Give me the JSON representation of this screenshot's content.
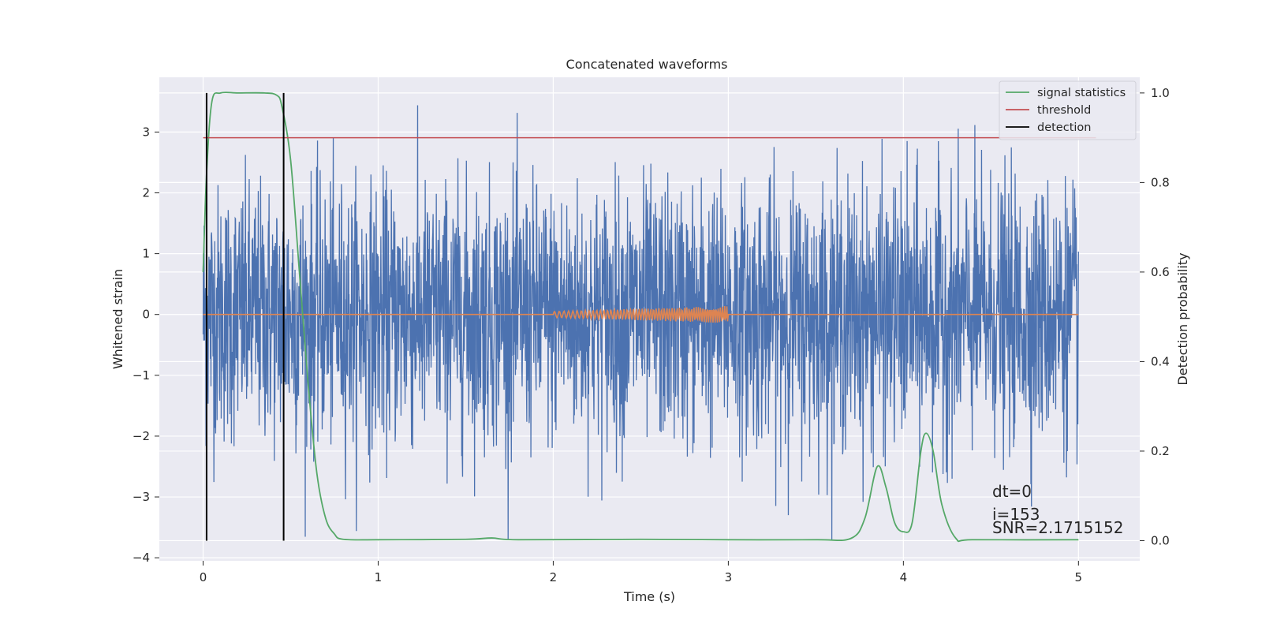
{
  "chart_data": {
    "type": "line",
    "title": "Concatenated waveforms",
    "xlabel": "Time (s)",
    "ylabel_left": "Whitened strain",
    "ylabel_right": "Detection probability",
    "xlim": [
      -0.25,
      5.35
    ],
    "ylim_left": [
      -4.05,
      3.9
    ],
    "ylim_right": [
      -0.045,
      1.035
    ],
    "x_ticks": [
      0,
      1,
      2,
      3,
      4,
      5
    ],
    "y_left_ticks": [
      3,
      2,
      1,
      0,
      -1,
      -2,
      -3,
      -4
    ],
    "y_left_tick_labels": [
      "3",
      "2",
      "1",
      "0",
      "−1",
      "−2",
      "−3",
      "−4"
    ],
    "y_right_ticks": [
      1.0,
      0.8,
      0.6,
      0.4,
      0.2,
      0.0
    ],
    "y_right_tick_labels": [
      "1.0",
      "0.8",
      "0.6",
      "0.4",
      "0.2",
      "0.0"
    ],
    "grid": true,
    "legend_position": "top-right",
    "background_color": "#eaeaf2",
    "series": [
      {
        "name": "",
        "role": "whitened noise + signal",
        "axis": "left",
        "color": "#4c72b0",
        "x_range": [
          0,
          5
        ],
        "y_extent": [
          -3.7,
          3.6
        ],
        "style": "noise"
      },
      {
        "name": "",
        "role": "injected waveform",
        "axis": "left",
        "color": "#dd8452",
        "x": [
          0,
          2,
          2.5,
          3,
          5
        ],
        "y": [
          0,
          0,
          0,
          0,
          0
        ],
        "chirp_x_range": [
          2,
          3
        ],
        "chirp_amplitude_start": 0.05,
        "chirp_amplitude_end": 0.14
      },
      {
        "name": "signal statistics",
        "axis": "right",
        "color": "#55a868",
        "x": [
          0.0,
          0.02,
          0.05,
          0.1,
          0.2,
          0.35,
          0.42,
          0.45,
          0.5,
          0.55,
          0.6,
          0.65,
          0.7,
          0.75,
          0.8,
          1.0,
          1.5,
          1.65,
          1.8,
          2.5,
          3.0,
          3.5,
          3.7,
          3.78,
          3.85,
          3.9,
          3.95,
          4.0,
          4.05,
          4.1,
          4.13,
          4.17,
          4.22,
          4.3,
          4.4,
          5.0
        ],
        "y": [
          0.6,
          0.82,
          0.98,
          1.0,
          1.0,
          1.0,
          0.995,
          0.97,
          0.85,
          0.6,
          0.35,
          0.15,
          0.05,
          0.015,
          0.003,
          0.002,
          0.003,
          0.006,
          0.002,
          0.003,
          0.002,
          0.002,
          0.005,
          0.05,
          0.165,
          0.12,
          0.04,
          0.02,
          0.04,
          0.2,
          0.24,
          0.2,
          0.08,
          0.005,
          0.002,
          0.002
        ]
      },
      {
        "name": "threshold",
        "axis": "right",
        "color": "#c44e52",
        "x": [
          0.0,
          5.1
        ],
        "y": [
          0.9,
          0.9
        ]
      },
      {
        "name": "detection",
        "axis": "right",
        "color": "#000000",
        "x": [
          0.02,
          0.46
        ],
        "y_range": [
          0.0,
          1.0
        ]
      }
    ],
    "annotations": {
      "dt": "dt=0",
      "i": "i=153",
      "snr": "SNR=2.1715152"
    }
  }
}
